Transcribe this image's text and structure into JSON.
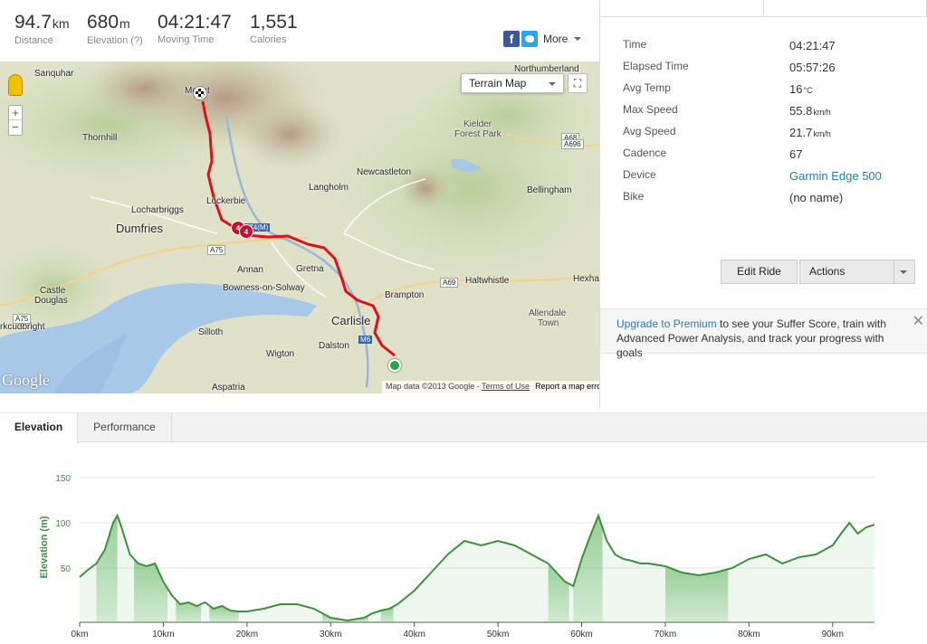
{
  "stats": [
    {
      "value": "94.7",
      "unit": "km",
      "label": "Distance"
    },
    {
      "value": "680",
      "unit": "m",
      "label": "Elevation (?)"
    },
    {
      "value": "04:21:47",
      "unit": "",
      "label": "Moving Time"
    },
    {
      "value": "1,551",
      "unit": "",
      "label": "Calories"
    }
  ],
  "share": {
    "facebook_icon": "f",
    "twitter_icon": "twitter-bird-icon",
    "more_label": "More"
  },
  "map": {
    "type_select": "Terrain Map",
    "zoom_in": "+",
    "zoom_out": "−",
    "fullscreen": "⛶",
    "logo": "Google",
    "attribution": "Map data ©2013 Google - ",
    "terms": "Terms of Use",
    "report": "Report a map error",
    "lap_labels": [
      "4",
      "4"
    ],
    "places": [
      {
        "name": "Sanquhar",
        "big": false
      },
      {
        "name": "Northumberland",
        "big": false
      },
      {
        "name": "Thornhill",
        "big": false
      },
      {
        "name": "Kielder",
        "big": false
      },
      {
        "name": "Forest Park",
        "big": false
      },
      {
        "name": "Newcastleton",
        "big": false
      },
      {
        "name": "Langholm",
        "big": false
      },
      {
        "name": "Lockerbie",
        "big": false
      },
      {
        "name": "Bellingham",
        "big": false
      },
      {
        "name": "Locharbriggs",
        "big": false
      },
      {
        "name": "Dumfries",
        "big": true
      },
      {
        "name": "Annan",
        "big": false
      },
      {
        "name": "Gretna",
        "big": false
      },
      {
        "name": "Bowness-on-Solway",
        "big": false
      },
      {
        "name": "Haltwhistle",
        "big": false
      },
      {
        "name": "Hexha",
        "big": false
      },
      {
        "name": "Castle",
        "big": false
      },
      {
        "name": "Douglas",
        "big": false
      },
      {
        "name": "Brampton",
        "big": false
      },
      {
        "name": "Carlisle",
        "big": true
      },
      {
        "name": "Allendale",
        "big": false
      },
      {
        "name": "Town",
        "big": false
      },
      {
        "name": "rkcudbright",
        "big": false
      },
      {
        "name": "Silloth",
        "big": false
      },
      {
        "name": "Dalston",
        "big": false
      },
      {
        "name": "Wigton",
        "big": false
      },
      {
        "name": "Aspatria",
        "big": false
      },
      {
        "name": "Moffat",
        "big": false
      }
    ],
    "roads": [
      "A75",
      "A74(M)",
      "A69",
      "A68",
      "A696",
      "M6",
      "A75"
    ]
  },
  "details": [
    {
      "key": "Time",
      "value": "04:21:47",
      "unit": "",
      "link": false
    },
    {
      "key": "Elapsed Time",
      "value": "05:57:26",
      "unit": "",
      "link": false
    },
    {
      "key": "Avg Temp",
      "value": "16",
      "unit": "°C",
      "link": false
    },
    {
      "key": "Max Speed",
      "value": "55.8",
      "unit": "km/h",
      "link": false
    },
    {
      "key": "Avg Speed",
      "value": "21.7",
      "unit": "km/h",
      "link": false
    },
    {
      "key": "Cadence",
      "value": "67",
      "unit": "",
      "link": false
    },
    {
      "key": "Device",
      "value": "Garmin Edge 500",
      "unit": "",
      "link": true
    },
    {
      "key": "Bike",
      "value": "(no name)",
      "unit": "",
      "link": false
    }
  ],
  "buttons": {
    "edit": "Edit Ride",
    "actions": "Actions"
  },
  "premium": {
    "link": "Upgrade to Premium",
    "text": " to see your Suffer Score, train with Advanced Power Analysis, and track your progress with goals",
    "close": "✕"
  },
  "lower_tabs": {
    "elevation": "Elevation",
    "performance": "Performance"
  },
  "colors": {
    "route": "#e0101a",
    "elevation_line": "#3f8f3f",
    "climb_fill": "#7cc27c",
    "accent_link": "#2a7ab8"
  },
  "chart_data": {
    "type": "area",
    "ylabel": "Elevation (m)",
    "xlabel": "",
    "x_ticks": [
      "0km",
      "10km",
      "20km",
      "30km",
      "40km",
      "50km",
      "60km",
      "70km",
      "80km",
      "90km"
    ],
    "y_ticks": [
      "50",
      "100",
      "150"
    ],
    "xlim": [
      0,
      95
    ],
    "ylim": [
      -10,
      150
    ],
    "x": [
      0,
      1,
      2,
      3,
      4,
      4.5,
      5,
      6,
      7,
      8,
      9,
      10,
      11,
      12,
      13,
      14,
      15,
      16,
      17,
      18,
      19,
      20,
      22,
      24,
      26,
      28,
      30,
      32,
      34,
      35,
      36,
      37,
      38,
      40,
      42,
      44,
      46,
      48,
      50,
      52,
      54,
      56,
      57,
      58,
      59,
      60,
      61,
      62,
      63,
      64,
      65,
      66,
      67,
      68,
      70,
      72,
      74,
      76,
      78,
      80,
      82,
      84,
      86,
      88,
      90,
      91,
      92,
      93,
      94,
      95
    ],
    "values": [
      40,
      48,
      55,
      70,
      100,
      108,
      95,
      65,
      55,
      52,
      55,
      35,
      20,
      10,
      12,
      8,
      12,
      5,
      8,
      3,
      2,
      2,
      5,
      10,
      10,
      5,
      -5,
      -8,
      -5,
      0,
      3,
      5,
      10,
      25,
      45,
      65,
      80,
      75,
      80,
      75,
      65,
      55,
      45,
      35,
      30,
      60,
      85,
      108,
      80,
      65,
      60,
      58,
      55,
      55,
      52,
      45,
      42,
      45,
      50,
      60,
      65,
      55,
      62,
      65,
      75,
      88,
      100,
      88,
      95,
      98
    ],
    "climbs": [
      [
        2,
        4.5
      ],
      [
        6.5,
        10.5
      ],
      [
        11.5,
        14.5
      ],
      [
        15.5,
        19
      ],
      [
        29,
        31
      ],
      [
        32,
        34.5
      ],
      [
        36,
        37.5
      ],
      [
        56,
        58.5
      ],
      [
        59,
        62.5
      ],
      [
        70,
        77.5
      ]
    ]
  }
}
